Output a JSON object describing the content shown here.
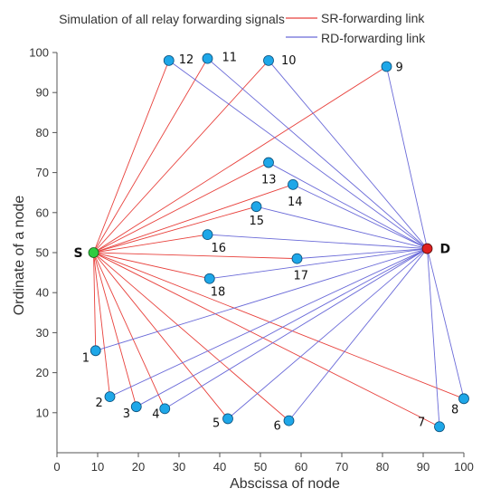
{
  "chart_data": {
    "type": "scatter",
    "title": "Simulation of all relay forwarding signals",
    "xlabel": "Abscissa of node",
    "ylabel": "Ordinate of a node",
    "xlim": [
      0,
      100
    ],
    "ylim": [
      0,
      100
    ],
    "xticks": [
      "0",
      "10",
      "20",
      "30",
      "40",
      "50",
      "60",
      "70",
      "80",
      "90",
      "100"
    ],
    "yticks": [
      "10",
      "20",
      "30",
      "40",
      "50",
      "60",
      "70",
      "80",
      "90",
      "100"
    ],
    "grid": false,
    "legend": {
      "placement": "top-right",
      "entries": [
        {
          "label": "SR-forwarding link",
          "color": "#e8413c"
        },
        {
          "label": "RD-forwarding link",
          "color": "#6a6ad8"
        }
      ]
    },
    "source": {
      "label": "S",
      "x": 9,
      "y": 50,
      "color": "#2ecc40"
    },
    "destination": {
      "label": "D",
      "x": 91,
      "y": 51,
      "color": "#e02020"
    },
    "relay_color": "#1ea7e8",
    "relays": [
      {
        "label": "1",
        "x": 9.5,
        "y": 25.5
      },
      {
        "label": "2",
        "x": 13,
        "y": 14
      },
      {
        "label": "3",
        "x": 19.5,
        "y": 11.5
      },
      {
        "label": "4",
        "x": 26.5,
        "y": 11
      },
      {
        "label": "5",
        "x": 42,
        "y": 8.5
      },
      {
        "label": "6",
        "x": 57,
        "y": 8
      },
      {
        "label": "7",
        "x": 94,
        "y": 6.5
      },
      {
        "label": "8",
        "x": 100,
        "y": 13.5
      },
      {
        "label": "9",
        "x": 81,
        "y": 96.5
      },
      {
        "label": "10",
        "x": 52,
        "y": 98
      },
      {
        "label": "11",
        "x": 37,
        "y": 98.5
      },
      {
        "label": "12",
        "x": 27.5,
        "y": 98
      },
      {
        "label": "13",
        "x": 52,
        "y": 72.5
      },
      {
        "label": "14",
        "x": 58,
        "y": 67
      },
      {
        "label": "15",
        "x": 49,
        "y": 61.5
      },
      {
        "label": "16",
        "x": 37,
        "y": 54.5
      },
      {
        "label": "17",
        "x": 59,
        "y": 48.5
      },
      {
        "label": "18",
        "x": 37.5,
        "y": 43.5
      }
    ]
  }
}
